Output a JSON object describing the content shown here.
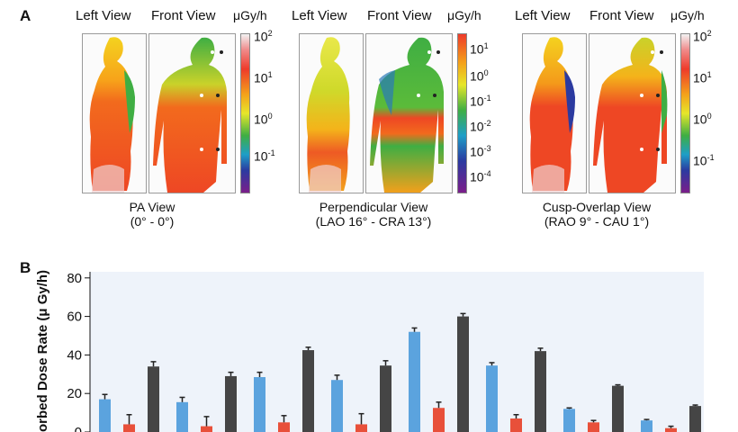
{
  "panel_a": {
    "letter": "A",
    "groups": [
      {
        "left_view": "Left View",
        "front_view": "Front View",
        "unit": "μGy/h",
        "caption_line1": "PA View",
        "caption_line2": "(0° - 0°)",
        "ticks": [
          {
            "base": "10",
            "exp": "2"
          },
          {
            "base": "10",
            "exp": "1"
          },
          {
            "base": "10",
            "exp": "0"
          },
          {
            "base": "10",
            "exp": "-1"
          }
        ]
      },
      {
        "left_view": "Left View",
        "front_view": "Front View",
        "unit": "μGy/h",
        "caption_line1": "Perpendicular View",
        "caption_line2": "(LAO 16° - CRA 13°)",
        "ticks": [
          {
            "base": "10",
            "exp": "1"
          },
          {
            "base": "10",
            "exp": "0"
          },
          {
            "base": "10",
            "exp": "-1"
          },
          {
            "base": "10",
            "exp": "-2"
          },
          {
            "base": "10",
            "exp": "-3"
          },
          {
            "base": "10",
            "exp": "-4"
          }
        ]
      },
      {
        "left_view": "Left View",
        "front_view": "Front View",
        "unit": "μGy/h",
        "caption_line1": "Cusp-Overlap View",
        "caption_line2": "(RAO 9° - CAU 1°)",
        "ticks": [
          {
            "base": "10",
            "exp": "2"
          },
          {
            "base": "10",
            "exp": "1"
          },
          {
            "base": "10",
            "exp": "0"
          },
          {
            "base": "10",
            "exp": "-1"
          }
        ]
      }
    ]
  },
  "panel_b": {
    "letter": "B"
  },
  "chart_data": {
    "type": "bar",
    "ylabel": "orbed Dose Rate (μ Gy/h)",
    "ylim": [
      0,
      85
    ],
    "yticks": [
      0,
      20,
      40,
      60,
      80
    ],
    "colors": [
      "#5ba3de",
      "#e8503a",
      "#454545"
    ],
    "series": [
      {
        "values": [
          17,
          15.5,
          28.5,
          27,
          52,
          34.5,
          12,
          6
        ],
        "errors": [
          2.5,
          2.5,
          2.5,
          2.5,
          2,
          1.5,
          0.5,
          0.5
        ]
      },
      {
        "values": [
          4,
          3,
          5,
          4,
          12.5,
          7,
          5,
          2
        ],
        "errors": [
          5,
          5,
          3.5,
          5.5,
          3,
          2,
          1,
          1
        ]
      },
      {
        "values": [
          34,
          29,
          42.5,
          34.5,
          60,
          42,
          24,
          13.5
        ],
        "errors": [
          2.5,
          2,
          1.5,
          2.5,
          1.5,
          1.5,
          0.5,
          0.5
        ]
      }
    ]
  }
}
